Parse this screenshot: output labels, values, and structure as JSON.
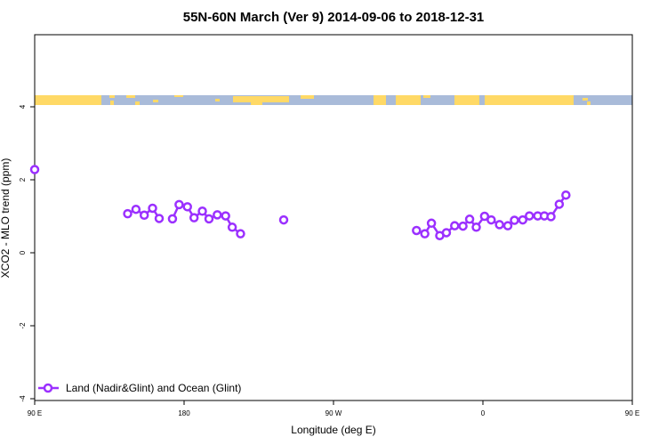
{
  "chart_data": {
    "type": "scatter",
    "title": "55N-60N March (Ver 9)   2014-09-06 to 2018-12-31",
    "xlabel": "Longitude (deg E)",
    "ylabel": "XCO2 - MLO trend (ppm)",
    "xlim": [
      90,
      450
    ],
    "ylim": [
      -4,
      4
    ],
    "x_ticks": [
      {
        "value": 90,
        "label": "90 E"
      },
      {
        "value": 180,
        "label": "180"
      },
      {
        "value": 270,
        "label": "90 W"
      },
      {
        "value": 360,
        "label": "0"
      },
      {
        "value": 450,
        "label": "90 E"
      },
      {
        "value": 540,
        "label": "180"
      }
    ],
    "y_ticks": [
      {
        "value": -4,
        "label": "-4"
      },
      {
        "value": -2,
        "label": "-2"
      },
      {
        "value": 0,
        "label": "0"
      },
      {
        "value": 2,
        "label": "2"
      },
      {
        "value": 4,
        "label": "4"
      }
    ],
    "map_strip": {
      "land_color": "#FFD966",
      "ocean_color": "#A9BBD9"
    },
    "series": [
      {
        "name": "Land (Nadir&Glint) and Ocean (Glint)",
        "color": "#9B30FF",
        "segments": [
          [
            [
              90,
              2.28
            ]
          ],
          [
            [
              146,
              1.07
            ],
            [
              151,
              1.19
            ],
            [
              156,
              1.03
            ],
            [
              161,
              1.22
            ],
            [
              165,
              0.94
            ]
          ],
          [
            [
              173,
              0.93
            ],
            [
              177,
              1.32
            ],
            [
              182,
              1.26
            ],
            [
              186,
              0.96
            ],
            [
              191,
              1.14
            ],
            [
              195,
              0.93
            ],
            [
              200,
              1.04
            ],
            [
              205,
              1.01
            ],
            [
              209,
              0.7
            ],
            [
              214,
              0.52
            ]
          ],
          [
            [
              240,
              0.9
            ]
          ],
          [
            [
              320,
              0.61
            ],
            [
              325,
              0.52
            ],
            [
              329,
              0.81
            ],
            [
              334,
              0.47
            ],
            [
              338,
              0.55
            ],
            [
              343,
              0.74
            ],
            [
              348,
              0.73
            ],
            [
              352,
              0.92
            ],
            [
              356,
              0.7
            ],
            [
              361,
              1.0
            ],
            [
              365,
              0.9
            ],
            [
              370,
              0.77
            ],
            [
              375,
              0.74
            ],
            [
              379,
              0.89
            ],
            [
              384,
              0.9
            ],
            [
              388,
              1.01
            ],
            [
              393,
              1.01
            ],
            [
              397,
              1.01
            ],
            [
              401,
              0.99
            ],
            [
              406,
              1.33
            ],
            [
              410,
              1.58
            ]
          ]
        ]
      }
    ]
  }
}
